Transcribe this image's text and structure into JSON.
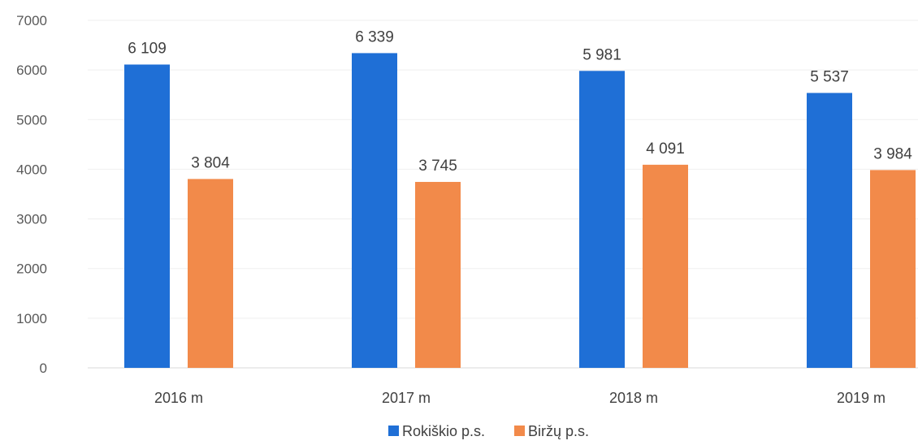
{
  "chart_data": {
    "type": "bar",
    "title": "",
    "xlabel": "",
    "ylabel": "",
    "categories": [
      "2016 m",
      "2017 m",
      "2018 m",
      "2019 m"
    ],
    "series": [
      {
        "name": "Rokiškio p.s.",
        "color": "#1f6fd6",
        "values": [
          6109,
          6339,
          5981,
          5537
        ],
        "labels": [
          "6 109",
          "6 339",
          "5 981",
          "5 537"
        ]
      },
      {
        "name": "Biržų p.s.",
        "color": "#f28a4a",
        "values": [
          3804,
          3745,
          4091,
          3984
        ],
        "labels": [
          "3 804",
          "3 745",
          "4 091",
          "3 984"
        ]
      }
    ],
    "ylim": [
      0,
      7000
    ],
    "yticks": [
      "0",
      "1000",
      "2000",
      "3000",
      "4000",
      "5000",
      "6000",
      "7000"
    ],
    "grid": true,
    "legend": "bottom-center"
  }
}
